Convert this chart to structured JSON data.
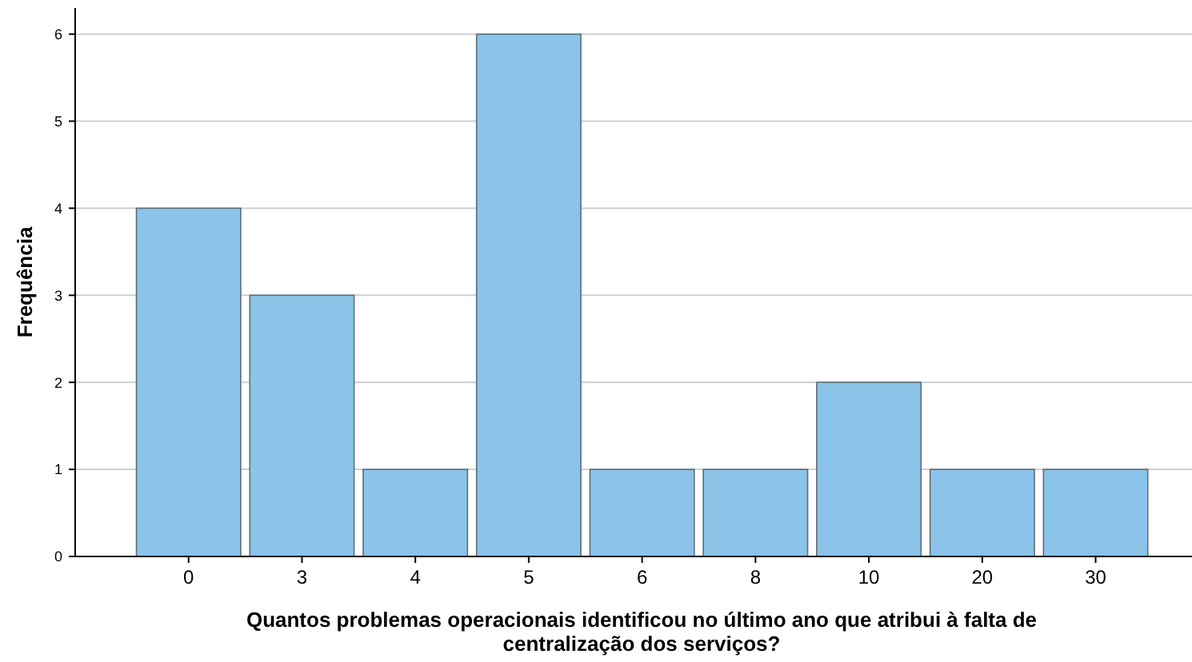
{
  "chart_data": {
    "type": "bar",
    "xlabel": "Quantos problemas operacionais identificou no último ano que atribui à falta de centralização dos serviços?",
    "ylabel": "Frequência",
    "categories": [
      "0",
      "3",
      "4",
      "5",
      "6",
      "8",
      "10",
      "20",
      "30"
    ],
    "values": [
      4,
      3,
      1,
      6,
      1,
      1,
      2,
      1,
      1
    ],
    "color": "#8cc3e8",
    "ylim": [
      0,
      6.3
    ],
    "yticks": [
      0,
      1,
      2,
      3,
      4,
      5,
      6
    ],
    "grid": "y"
  }
}
